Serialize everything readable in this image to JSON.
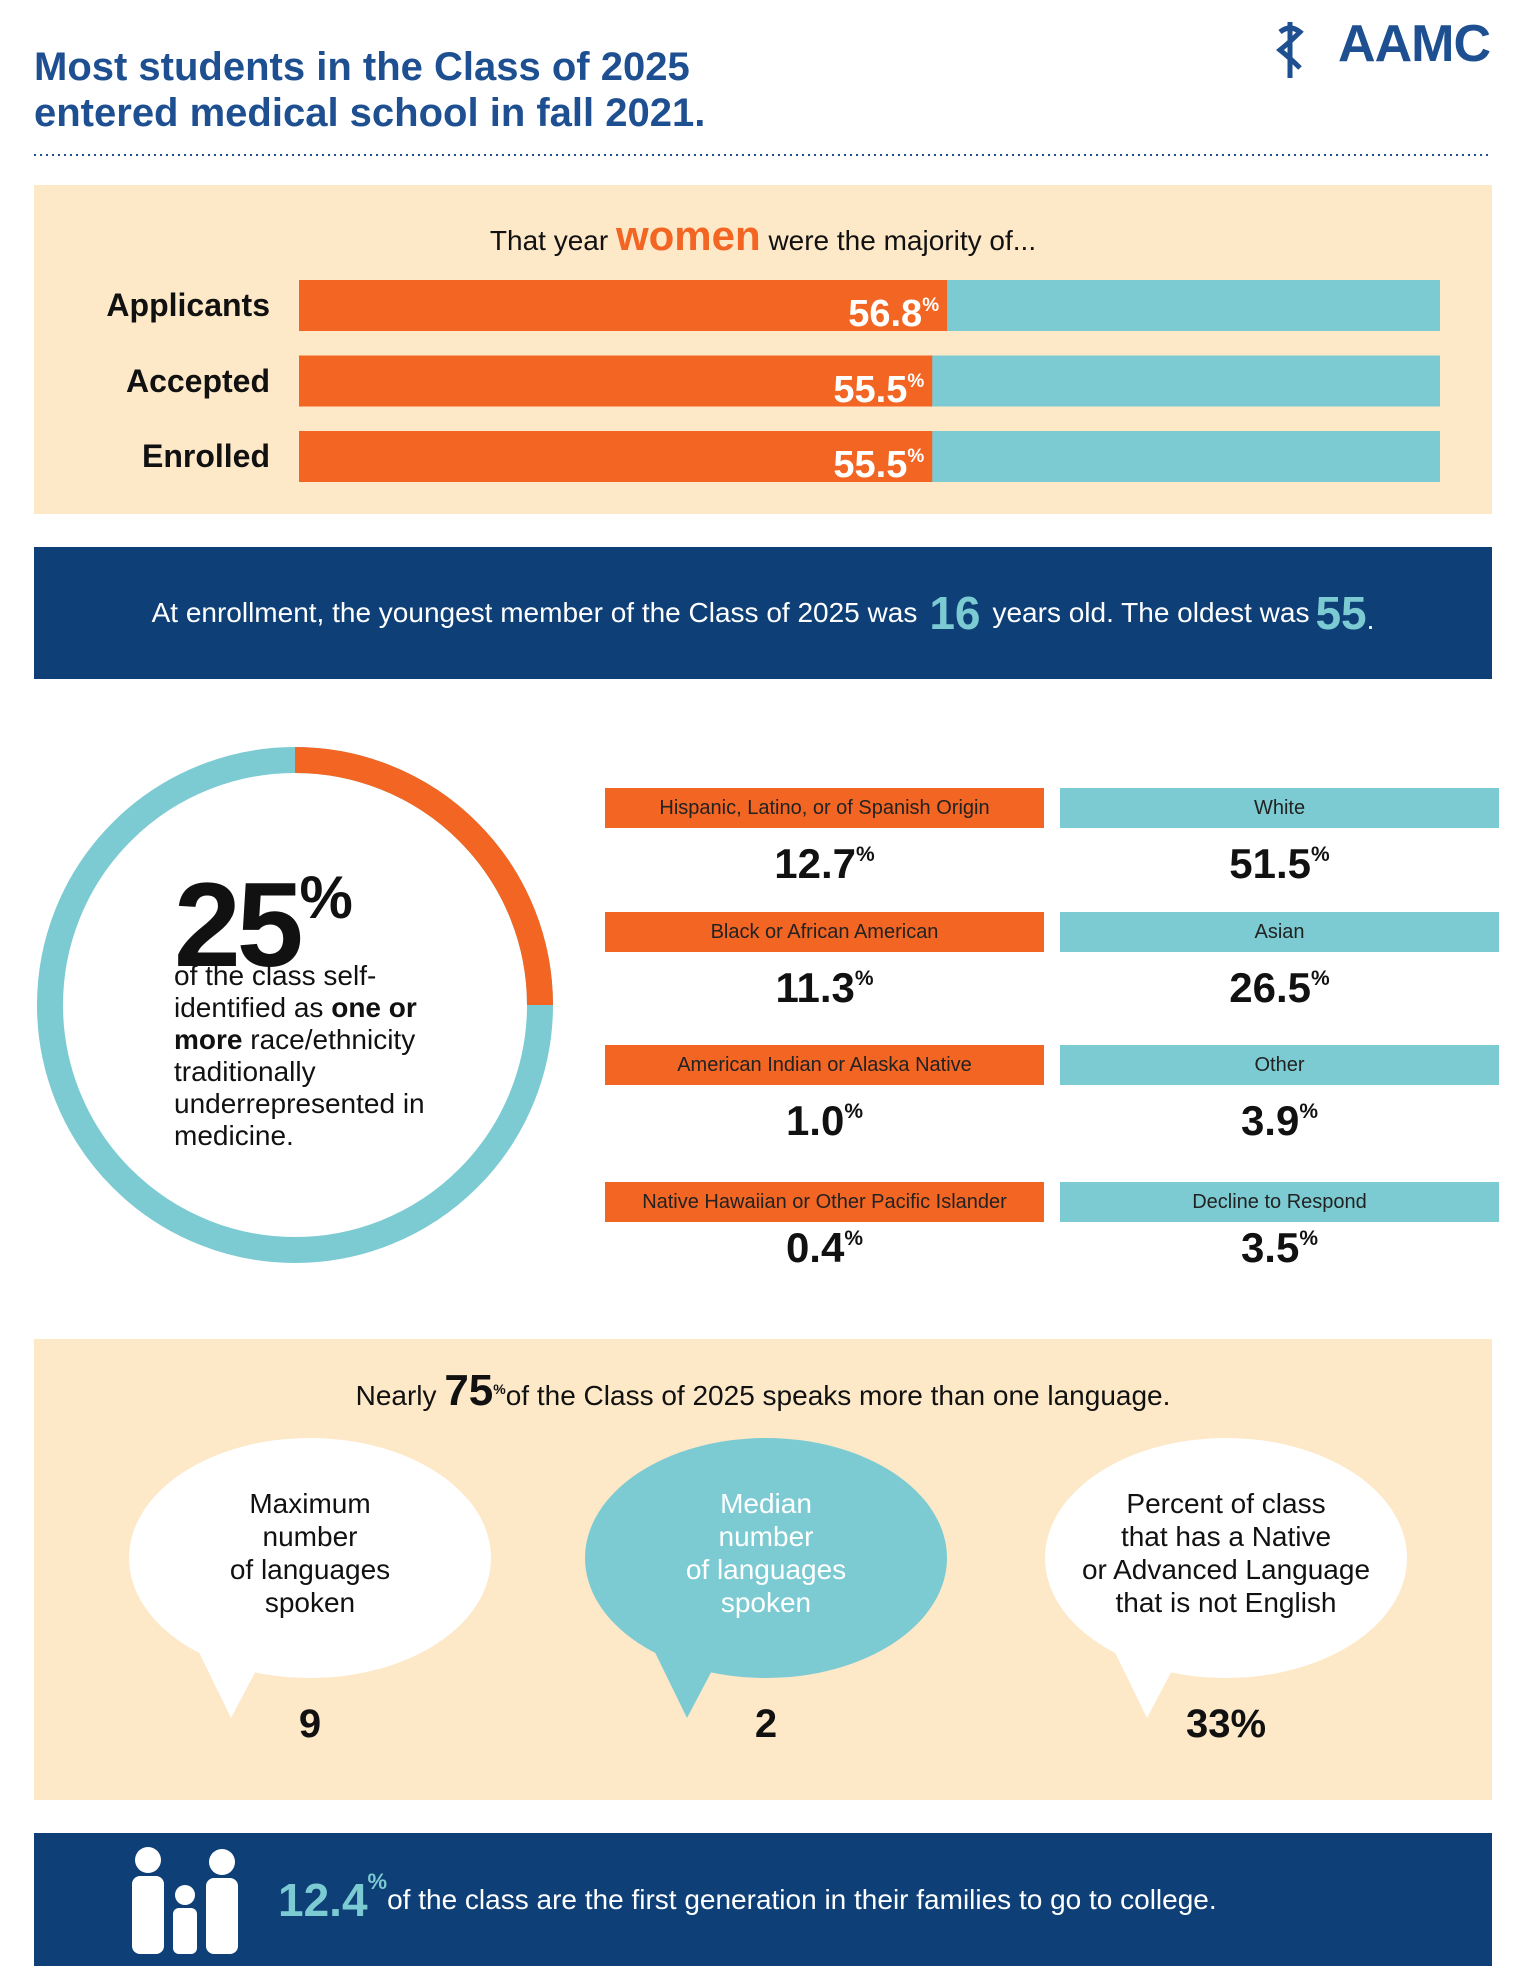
{
  "header": {
    "title_lines": [
      "Most students in the Class of 2025",
      "entered medical school in fall 2021."
    ],
    "logo": "AAMC"
  },
  "gender": {
    "intro": [
      "That year",
      "women",
      "were the majority of..."
    ],
    "unit": "%",
    "xlim": [
      0,
      100
    ],
    "rows": [
      {
        "label": "Applicants",
        "value": 56.8
      },
      {
        "label": "Accepted",
        "value": 55.5
      },
      {
        "label": "Enrolled",
        "value": 55.5
      }
    ],
    "colors": [
      "#f26522",
      "#7ccbd3"
    ]
  },
  "age": {
    "parts": [
      "At enrollment, the youngest member of the Class of 2025 was",
      16,
      "years old. The oldest was",
      55,
      "."
    ]
  },
  "urim": {
    "value": 25,
    "unit": "%",
    "xlim": [
      0,
      100
    ],
    "colors": [
      "#f26522",
      "#7ccbd3"
    ],
    "text": [
      "of the class self-identified as",
      "one or more",
      "race/ethnicity traditionally underrepresented in medicine."
    ]
  },
  "race": {
    "unit": "%",
    "groups": [
      {
        "label": "Hispanic, Latino, or of Spanish Origin",
        "value": "12.7",
        "color": "#f26522"
      },
      {
        "label": "White",
        "value": "51.5",
        "color": "#7ccbd3"
      },
      {
        "label": "Black or African American",
        "value": "11.3",
        "color": "#f26522"
      },
      {
        "label": "Asian",
        "value": "26.5",
        "color": "#7ccbd3"
      },
      {
        "label": "American Indian or Alaska Native",
        "value": "1.0",
        "color": "#f26522"
      },
      {
        "label": "Other",
        "value": "3.9",
        "color": "#7ccbd3"
      },
      {
        "label": "Native Hawaiian or Other Pacific Islander",
        "value": "0.4",
        "color": "#f26522"
      },
      {
        "label": "Decline to Respond",
        "value": "3.5",
        "color": "#7ccbd3"
      }
    ]
  },
  "languages": {
    "intro": [
      "Nearly",
      75,
      "%",
      "of the Class of 2025 speaks more than one language."
    ],
    "bubbles": [
      {
        "lines": [
          "Maximum",
          "number",
          "of languages",
          "spoken"
        ],
        "value": "9",
        "fill": "#ffffff",
        "text_color": "#111111"
      },
      {
        "lines": [
          "Median",
          "number",
          "of languages",
          "spoken"
        ],
        "value": "2",
        "fill": "#7ccbd3",
        "text_color": "#ffffff"
      },
      {
        "lines": [
          "Percent of class",
          "that has a Native",
          "or Advanced Language",
          "that is not English"
        ],
        "value": "33%",
        "fill": "#ffffff",
        "text_color": "#111111"
      }
    ]
  },
  "first_gen": {
    "value": "12.4",
    "unit": "%",
    "text": "of the class are the first generation in their families to go to college."
  }
}
